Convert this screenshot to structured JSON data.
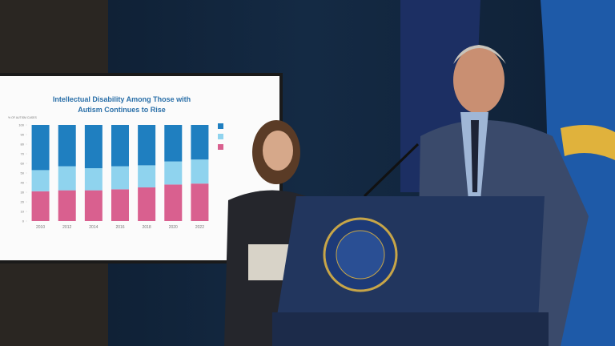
{
  "chart_data": {
    "type": "stacked-bar",
    "title": "Intellectual Disability Among Those with Autism Continues to Rise",
    "y_label": "% OF AUTISM CASES",
    "categories": [
      "2010",
      "2012",
      "2014",
      "2016",
      "2018",
      "2020",
      "2022"
    ],
    "series": [
      {
        "color": "#d9608f",
        "values": [
          31,
          32,
          32,
          33,
          35,
          38,
          39
        ]
      },
      {
        "color": "#8fd3ee",
        "values": [
          22,
          25,
          23,
          24,
          23,
          24,
          25
        ]
      },
      {
        "color": "#1f7fc0",
        "values": [
          47,
          43,
          45,
          43,
          42,
          38,
          36
        ]
      }
    ],
    "ylim": [
      0,
      100
    ],
    "yticks": [
      0,
      10,
      20,
      30,
      40,
      50,
      60,
      70,
      80,
      90,
      100
    ]
  }
}
